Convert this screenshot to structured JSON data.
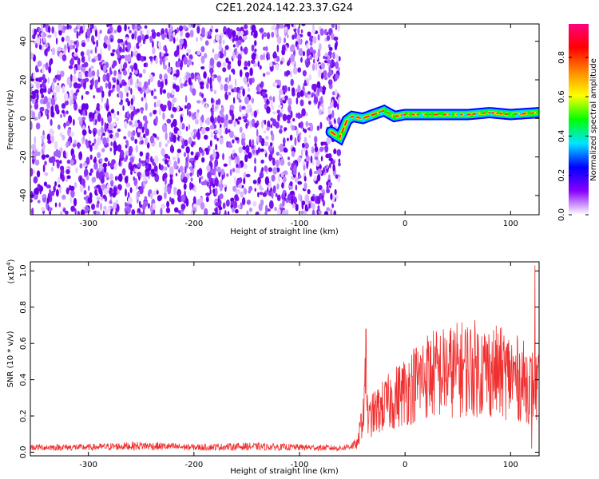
{
  "title": "C2E1.2024.142.23.37.G24",
  "chart_data": [
    {
      "type": "heatmap",
      "xlabel": "Height of straight line (km)",
      "ylabel": "Frequency (Hz)",
      "xlim": [
        -355,
        127
      ],
      "ylim": [
        -50,
        49
      ],
      "xticks": [
        -300,
        -200,
        -100,
        0,
        100
      ],
      "yticks": [
        -40,
        -20,
        0,
        20,
        40
      ],
      "xtick_labels": [
        "-300",
        "-200",
        "-100",
        "0",
        "100"
      ],
      "ytick_labels": [
        "-40",
        "-20",
        "0",
        "20",
        "40"
      ],
      "noise_region_x": [
        -355,
        -62
      ],
      "signal_track": {
        "x": [
          -70,
          -65,
          -62,
          -58,
          -55,
          -50,
          -40,
          -30,
          -20,
          -10,
          0,
          20,
          40,
          60,
          80,
          100,
          127
        ],
        "freq_hz": [
          -7,
          -9,
          -10,
          -5,
          -1,
          1,
          0,
          2,
          4,
          1,
          2,
          2,
          2,
          2,
          3,
          2,
          3
        ]
      },
      "colorbar": {
        "label": "Normalized spectral amplitude",
        "range": [
          0,
          0.97
        ],
        "ticks": [
          0.0,
          0.2,
          0.4,
          0.6,
          0.8
        ],
        "tick_labels": [
          "0.0",
          "0.2",
          "0.4",
          "0.6",
          "0.8"
        ],
        "colormap": [
          "#ffffff",
          "#8800ff",
          "#0000ff",
          "#00e5ff",
          "#00ff00",
          "#ffff00",
          "#ff8800",
          "#ff0000",
          "#ff0080"
        ]
      },
      "grid": false
    },
    {
      "type": "line",
      "xlabel": "Height of straight line (km)",
      "ylabel": "SNR (10 * v/v)",
      "y_multiplier": "(x10",
      "y_multiplier_exp": "4",
      "y_multiplier_close": ")",
      "xlim": [
        -355,
        127
      ],
      "ylim": [
        -0.02,
        1.05
      ],
      "xticks": [
        -300,
        -200,
        -100,
        0,
        100
      ],
      "yticks": [
        0.0,
        0.2,
        0.4,
        0.6,
        0.8,
        1.0
      ],
      "xtick_labels": [
        "-300",
        "-200",
        "-100",
        "0",
        "100"
      ],
      "ytick_labels": [
        "0.0",
        "0.2",
        "0.4",
        "0.6",
        "0.8",
        "1.0"
      ],
      "color": "#f03030",
      "envelope": {
        "x": [
          -355,
          -300,
          -250,
          -200,
          -150,
          -100,
          -60,
          -45,
          -40,
          -37,
          -35,
          -30,
          -20,
          -10,
          0,
          10,
          20,
          40,
          60,
          80,
          100,
          115,
          127
        ],
        "y": [
          0.03,
          0.03,
          0.04,
          0.03,
          0.035,
          0.03,
          0.025,
          0.05,
          0.25,
          0.45,
          0.2,
          0.25,
          0.3,
          0.35,
          0.4,
          0.45,
          0.5,
          0.52,
          0.55,
          0.53,
          0.5,
          0.45,
          0.4
        ]
      },
      "peaks": [
        {
          "x": -37,
          "y": 0.68
        },
        {
          "x": 123,
          "y": 1.03
        },
        {
          "x": 120,
          "y": 0.02
        }
      ],
      "grid": false
    }
  ]
}
